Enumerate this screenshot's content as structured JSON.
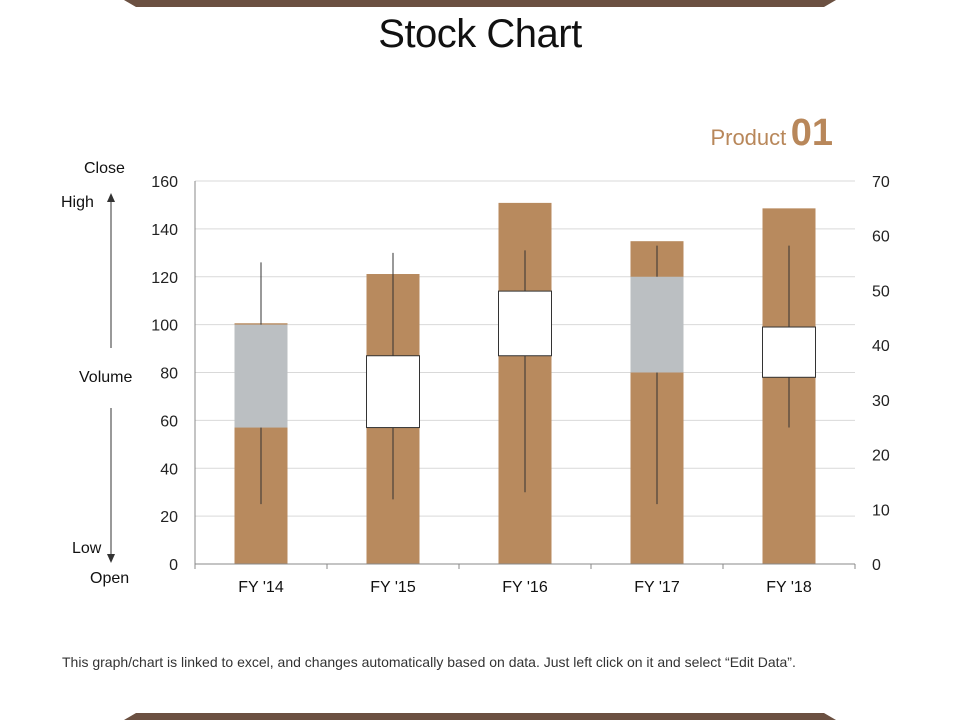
{
  "slide": {
    "title": "Stock Chart",
    "product_label": "Product",
    "product_number": "01",
    "footer": "This graph/chart is linked to excel, and changes automatically based on data. Just left click on it and select “Edit Data”."
  },
  "side_labels": {
    "close": "Close",
    "high": "High",
    "volume": "Volume",
    "low": "Low",
    "open": "Open"
  },
  "colors": {
    "band": "#6b5041",
    "volume_bar": "#b88a5e",
    "candle_up": "#ffffff",
    "candle_down": "#bbbfc2",
    "grid": "#d9d9d9",
    "axis": "#888888",
    "product_accent": "#b8875a"
  },
  "chart_data": {
    "type": "stock",
    "title": "",
    "categories": [
      "FY '14",
      "FY '15",
      "FY '16",
      "FY '17",
      "FY '18"
    ],
    "left_axis": {
      "min": 0,
      "max": 160,
      "step": 20,
      "ticks": [
        "0",
        "20",
        "40",
        "60",
        "80",
        "100",
        "120",
        "140",
        "160"
      ]
    },
    "right_axis": {
      "min": 0,
      "max": 70,
      "step": 10,
      "ticks": [
        "0",
        "10",
        "20",
        "30",
        "40",
        "50",
        "60",
        "70"
      ]
    },
    "volume": [
      44,
      53,
      66,
      59,
      65
    ],
    "open": [
      100,
      57,
      87,
      120,
      78
    ],
    "high": [
      126,
      130,
      131,
      133,
      133
    ],
    "low": [
      25,
      27,
      30,
      25,
      57
    ],
    "close": [
      57,
      87,
      114,
      80,
      99
    ],
    "grid": true,
    "legend": "none"
  }
}
